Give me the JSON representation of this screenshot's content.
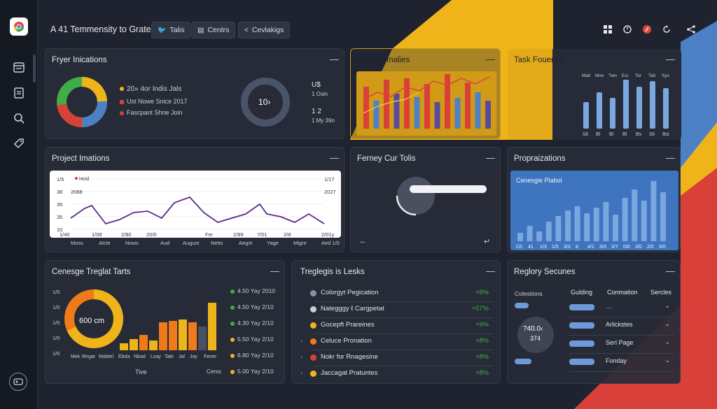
{
  "colors": {
    "accent_yellow": "#f0b41b",
    "accent_red": "#d9403a",
    "accent_blue": "#4d80c4",
    "bar_blue": "#7aa7e0",
    "green": "#3fae49",
    "orange": "#f07a19"
  },
  "header": {
    "title": "A 41 Temmensity to Grate",
    "buttons": [
      {
        "label": "Talis",
        "icon": "twitter-bird-icon"
      },
      {
        "label": "Centrs",
        "icon": "grid-icon"
      },
      {
        "label": "Cevlakigs",
        "icon": "share-icon"
      }
    ],
    "right_icons": [
      "grid-icon",
      "clock-icon",
      "compass-icon",
      "refresh-icon",
      "share-icon"
    ]
  },
  "sidebar": {
    "icons": [
      "browser-logo-icon",
      "calendar-icon",
      "document-icon",
      "search-icon",
      "tag-icon",
      "profile-icon"
    ]
  },
  "panels": {
    "fryer": {
      "title": "Fryer Inications",
      "legend": [
        {
          "text": "20» 4or Indis Jals",
          "color": "#f0b41b"
        },
        {
          "text": "Ust Nowe Snice 2017",
          "color": "#d9403a"
        },
        {
          "text": "Fascpant Shne Join",
          "color": "#d9403a"
        }
      ],
      "donut_center": "10›",
      "side_top": "U$",
      "side_top_sub": "1 Osin",
      "side_bot": "1 2",
      "side_bot_sub": "1 My 39n"
    },
    "project_implies": {
      "title": "Project Imalies"
    },
    "task_fouence": {
      "title": "Task Fouence",
      "top_labels": [
        "Mati",
        "Mve",
        "Twn",
        "Eci",
        "Tor",
        "Tati",
        "Sys"
      ],
      "bottom_labels": [
        "Sil",
        "Bl",
        "Bl",
        "Bl",
        "Bs",
        "Sil",
        "Bsi"
      ]
    },
    "project_imations": {
      "title": "Project Imations",
      "y_left": [
        "1/5",
        "38",
        "35",
        "35",
        "10"
      ],
      "y_right": [
        "1/17",
        "2027",
        "",
        "",
        ""
      ],
      "legend": "Hcid",
      "small_label": "2088",
      "x_labels": [
        "1/40",
        "1/08",
        "2/80",
        "20/0",
        "Fer",
        "2/89",
        "7/01",
        "2/8",
        "2/01y"
      ],
      "below_labels": [
        "Moss",
        "Alcte",
        "Nows",
        "Aud",
        "August",
        "Netts",
        "Aegst",
        "Yage",
        "Mignt",
        "Aed 1/0"
      ]
    },
    "ferney": {
      "title": "Ferney Cur Tolis",
      "back_arrow": "←",
      "hook": "↵"
    },
    "propra": {
      "title": "Propraizations",
      "subtitle": "Cenesgie Plabol",
      "x_labels": [
        "C0",
        "41",
        "1/3",
        "1/5",
        "3/3",
        "8",
        "4/1",
        "3/3",
        "3/7",
        "0/0",
        "3/0",
        "2/0",
        "3/0"
      ]
    },
    "cenesge": {
      "title": "Cenesge Treglat Tarts",
      "y_labels": [
        "1/0",
        "1/0",
        "1/0",
        "1/0",
        "1/0"
      ],
      "donut_label": "600 cm",
      "x_labels": [
        "Mek",
        "Regat",
        "Mabtel",
        "Ebda",
        "Nbad",
        "Lxay",
        "Tale",
        "Jal",
        "Jay",
        "Fener"
      ],
      "x_title": "Tive",
      "x_note": "Cerss",
      "dates": [
        "4.50 Yay 2010",
        "4.50 Yay 2/10",
        "4.30 Yay 2/10",
        "5.50 Yay 2/10",
        "6.80 Yay 2/10",
        "5.00 Yay 2/10"
      ]
    },
    "treglegis": {
      "title": "Treglegis is Lesks",
      "rows": [
        {
          "label": "Colorgyt Pegication",
          "value": "+8%",
          "icon": "gear-icon"
        },
        {
          "label": "Nategggy ℓ Cargpetat",
          "value": "+57%",
          "icon": "gear-icon"
        },
        {
          "label": "Gocepft Prareines",
          "value": "+9%",
          "icon": "circle-icon"
        },
        {
          "label": "Celuce Pronation",
          "value": "+8%",
          "icon": "circle-icon"
        },
        {
          "label": "Nokr for Rnagesine",
          "value": "+8%",
          "icon": "circle-icon"
        },
        {
          "label": "Jaccagat Pratuntes",
          "value": "+8%",
          "icon": "circle-icon"
        }
      ]
    },
    "reglory": {
      "title": "Reglory Secunes",
      "left_label": "Colestions",
      "circle_value": "?40.0‹",
      "circle_sub": "374",
      "cols": [
        "Gulding",
        "Conmation",
        "Sercles"
      ],
      "rows": [
        "…",
        "Arlickstes",
        "Serl Page",
        "Fonday"
      ]
    }
  }
}
